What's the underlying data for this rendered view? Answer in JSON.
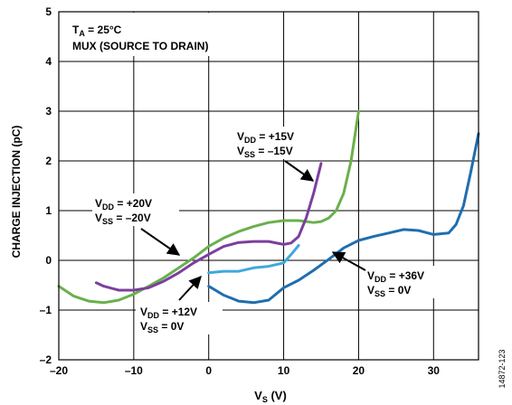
{
  "chart_data": {
    "type": "line",
    "xlabel": "V",
    "xlabel_sub": "S",
    "xlabel_unit": " (V)",
    "ylabel": "CHARGE INJECTION (pC)",
    "xlim": [
      -20,
      36
    ],
    "ylim": [
      -2,
      5
    ],
    "x_ticks": [
      -20,
      -10,
      0,
      10,
      20,
      30
    ],
    "x_tick_labels": [
      "–20",
      "–10",
      "0",
      "10",
      "20",
      "30"
    ],
    "y_ticks": [
      -2,
      -1,
      0,
      1,
      2,
      3,
      4,
      5
    ],
    "y_tick_labels": [
      "–2",
      "–1",
      "0",
      "1",
      "2",
      "3",
      "4",
      "5"
    ],
    "grid": true,
    "legend": "none",
    "annotation_box": {
      "line1_main": "T",
      "line1_sub": "A",
      "line1_rest": " = 25°C",
      "line2": "MUX (SOURCE TO DRAIN)"
    },
    "figure_id": "14872-123",
    "series": [
      {
        "color": "#6ab04c",
        "x": [
          -20,
          -18,
          -16,
          -14,
          -12,
          -10,
          -8,
          -6,
          -4,
          -2,
          0,
          2,
          4,
          6,
          8,
          10,
          12,
          14,
          15,
          16,
          17,
          18,
          19,
          20
        ],
        "y": [
          -0.52,
          -0.72,
          -0.82,
          -0.85,
          -0.8,
          -0.68,
          -0.52,
          -0.35,
          -0.15,
          0.05,
          0.28,
          0.45,
          0.58,
          0.68,
          0.76,
          0.8,
          0.8,
          0.76,
          0.78,
          0.85,
          1.0,
          1.35,
          2.0,
          3.0
        ]
      },
      {
        "color": "#7b3f9e",
        "x": [
          -15,
          -14,
          -12,
          -10,
          -8,
          -6,
          -4,
          -2,
          0,
          2,
          4,
          6,
          8,
          10,
          11,
          12,
          13,
          14,
          15
        ],
        "y": [
          -0.45,
          -0.52,
          -0.6,
          -0.6,
          -0.55,
          -0.42,
          -0.25,
          -0.05,
          0.12,
          0.28,
          0.36,
          0.38,
          0.38,
          0.32,
          0.35,
          0.48,
          0.85,
          1.35,
          1.95
        ]
      },
      {
        "color": "#3fa9dc",
        "x": [
          0,
          2,
          4,
          6,
          8,
          10,
          11,
          12
        ],
        "y": [
          -0.25,
          -0.22,
          -0.22,
          -0.15,
          -0.12,
          -0.05,
          0.12,
          0.3
        ]
      },
      {
        "color": "#1f6eb0",
        "x": [
          0,
          2,
          4,
          6,
          8,
          10,
          12,
          14,
          16,
          18,
          20,
          22,
          24,
          26,
          28,
          30,
          32,
          33,
          34,
          35,
          36
        ],
        "y": [
          -0.52,
          -0.7,
          -0.82,
          -0.85,
          -0.8,
          -0.55,
          -0.4,
          -0.2,
          0.02,
          0.25,
          0.4,
          0.48,
          0.55,
          0.62,
          0.6,
          0.52,
          0.55,
          0.72,
          1.1,
          1.8,
          2.55
        ]
      }
    ],
    "annotations": [
      {
        "id": "vdd20",
        "lines": [
          {
            "main": "V",
            "sub": "DD",
            "rest": " = +20V"
          },
          {
            "main": "V",
            "sub": "SS",
            "rest": " = –20V"
          }
        ]
      },
      {
        "id": "vdd15",
        "lines": [
          {
            "main": "V",
            "sub": "DD",
            "rest": " = +15V"
          },
          {
            "main": "V",
            "sub": "SS",
            "rest": " = –15V"
          }
        ]
      },
      {
        "id": "vdd12",
        "lines": [
          {
            "main": "V",
            "sub": "DD",
            "rest": " = +12V"
          },
          {
            "main": "V",
            "sub": "SS",
            "rest": " = 0V"
          }
        ]
      },
      {
        "id": "vdd36",
        "lines": [
          {
            "main": "V",
            "sub": "DD",
            "rest": " = +36V"
          },
          {
            "main": "V",
            "sub": "SS",
            "rest": " = 0V"
          }
        ]
      }
    ]
  }
}
